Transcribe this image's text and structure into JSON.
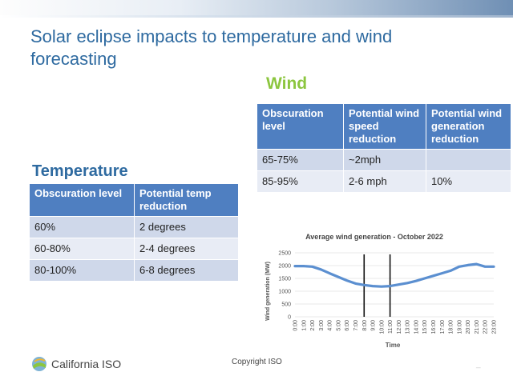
{
  "slide": {
    "title": "Solar eclipse impacts to temperature and wind forecasting",
    "footer": "Copyright ISO",
    "logo_text": "California ISO",
    "corner_text": "_"
  },
  "wind": {
    "heading": "Wind",
    "headers": [
      "Obscuration level",
      "Potential wind speed reduction",
      "Potential wind generation reduction"
    ],
    "rows": [
      [
        "65-75%",
        "~2mph",
        ""
      ],
      [
        "85-95%",
        "2-6 mph",
        "10%"
      ]
    ]
  },
  "temperature": {
    "heading": "Temperature",
    "headers": [
      "Obscuration level",
      "Potential temp reduction"
    ],
    "rows": [
      [
        "60%",
        "2 degrees"
      ],
      [
        "60-80%",
        "2-4 degrees"
      ],
      [
        "80-100%",
        "6-8 degrees"
      ]
    ]
  },
  "colors": {
    "title": "#2e6aa0",
    "wind_heading": "#8cc63f",
    "table_header": "#4f7fc1",
    "line": "#5b8fd0"
  },
  "chart_data": {
    "type": "line",
    "title": "Average wind generation - October 2022",
    "xlabel": "Time",
    "ylabel": "Wind generation (MW)",
    "ylim": [
      0,
      2500
    ],
    "yticks": [
      0,
      500,
      1000,
      1500,
      2000,
      2500
    ],
    "categories": [
      "0:00",
      "1:00",
      "2:00",
      "3:00",
      "4:00",
      "5:00",
      "6:00",
      "7:00",
      "8:00",
      "9:00",
      "10:00",
      "11:00",
      "12:00",
      "13:00",
      "14:00",
      "15:00",
      "16:00",
      "17:00",
      "18:00",
      "19:00",
      "20:00",
      "21:00",
      "22:00",
      "23:00"
    ],
    "series": [
      {
        "name": "Average wind generation",
        "values": [
          1980,
          1980,
          1960,
          1850,
          1700,
          1560,
          1420,
          1300,
          1240,
          1200,
          1180,
          1200,
          1260,
          1320,
          1400,
          1500,
          1600,
          1700,
          1800,
          1960,
          2020,
          2060,
          1960,
          1960
        ]
      }
    ],
    "vertical_markers": [
      "8:00",
      "11:00"
    ]
  }
}
